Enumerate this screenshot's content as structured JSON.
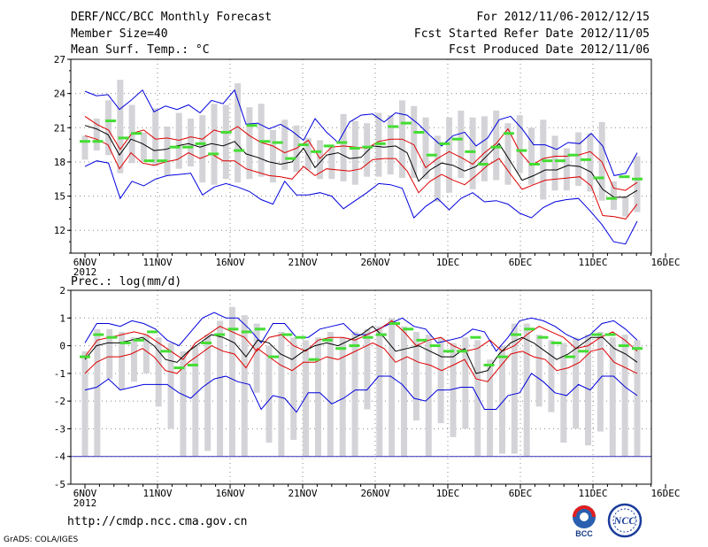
{
  "header": {
    "title": "DERF/NCC/BCC Monthly Forecast",
    "member_size": "Member Size=40",
    "variable": "Mean Surf. Temp.: °C",
    "period": "For 2012/11/06-2012/12/15",
    "refer_date": "Fcst Started Refer Date 2012/11/05",
    "produced_date": "Fcst Produced Date 2012/11/06"
  },
  "footer": {
    "url": "http://cmdp.ncc.cma.gov.cn",
    "credit": "GrADS: COLA/IGES",
    "logo_left_text": "BCC",
    "logo_right_text": "NCC"
  },
  "colors": {
    "envelope": "#0000dd",
    "ensemble_spread": "#dd0000",
    "mean": "#000000",
    "members_bar": "#d4d4d8",
    "obs_marker": "#44dd33",
    "floor_line": "#3333bb"
  },
  "chart_data": [
    {
      "id": "temperature",
      "type": "line",
      "ylabel": "Mean Surf. Temp.: °C",
      "ylim": [
        10,
        27
      ],
      "yticks": [
        12,
        15,
        18,
        21,
        24,
        27
      ],
      "xtick_labels": [
        "6NOV",
        "11NOV",
        "16NOV",
        "21NOV",
        "26NOV",
        "1DEC",
        "6DEC",
        "11DEC",
        "16DEC"
      ],
      "xtick_sublabel": "2012",
      "grid": true,
      "days": 40,
      "series": [
        {
          "name": "max",
          "values": [
            24.2,
            23.8,
            23.9,
            22.6,
            23.4,
            24.3,
            22.4,
            22.9,
            22.6,
            23.0,
            22.3,
            23.4,
            23.1,
            24.3,
            21.3,
            21.4,
            20.9,
            21.3,
            20.7,
            19.9,
            21.8,
            20.6,
            19.7,
            21.5,
            22.1,
            22.2,
            21.5,
            22.3,
            22.1,
            21.3,
            20.3,
            19.4,
            20.3,
            20.6,
            19.4,
            20.1,
            21.7,
            22.0,
            20.9,
            19.5,
            19.5,
            19.1,
            19.7,
            19.6,
            20.5,
            19.4,
            16.8,
            17.0,
            18.8
          ]
        },
        {
          "name": "upper",
          "values": [
            22.0,
            21.3,
            20.8,
            19.1,
            20.5,
            20.8,
            20.0,
            20.1,
            19.9,
            20.2,
            20.0,
            20.8,
            20.5,
            21.1,
            20.3,
            19.7,
            19.4,
            18.8,
            19.2,
            19.9,
            18.3,
            19.3,
            19.4,
            19.3,
            19.2,
            19.8,
            20.0,
            20.0,
            19.5,
            17.5,
            18.3,
            18.9,
            18.4,
            17.8,
            18.8,
            19.6,
            20.9,
            18.9,
            17.7,
            18.3,
            18.5,
            18.5,
            18.6,
            18.9,
            18.0,
            15.7,
            15.5,
            16.2
          ]
        },
        {
          "name": "mean",
          "values": [
            21.2,
            20.9,
            20.4,
            18.6,
            20.0,
            19.6,
            19.0,
            19.1,
            19.4,
            19.6,
            19.3,
            19.6,
            19.4,
            19.8,
            18.7,
            18.4,
            18.0,
            17.8,
            18.0,
            19.2,
            17.5,
            18.6,
            18.8,
            18.3,
            18.4,
            19.4,
            19.3,
            19.4,
            18.8,
            16.3,
            17.3,
            17.9,
            17.7,
            17.2,
            17.6,
            18.6,
            19.6,
            18.0,
            16.4,
            16.8,
            17.3,
            17.3,
            17.7,
            17.6,
            17.1,
            15.6,
            14.9,
            14.9,
            15.5
          ]
        },
        {
          "name": "lower",
          "values": [
            20.3,
            20.0,
            19.5,
            17.4,
            18.8,
            17.9,
            17.7,
            18.0,
            18.2,
            18.8,
            18.3,
            18.7,
            18.1,
            18.1,
            17.4,
            17.1,
            16.8,
            16.7,
            16.5,
            17.6,
            16.8,
            17.4,
            17.3,
            17.2,
            17.4,
            18.2,
            18.3,
            18.3,
            17.2,
            15.3,
            16.3,
            16.9,
            16.4,
            16.0,
            16.8,
            17.7,
            18.3,
            16.9,
            15.6,
            16.0,
            16.4,
            16.5,
            16.6,
            16.7,
            15.9,
            13.3,
            13.2,
            13.0,
            14.3
          ]
        },
        {
          "name": "min",
          "values": [
            17.6,
            18.1,
            17.9,
            14.8,
            16.3,
            15.9,
            16.5,
            16.8,
            16.9,
            17.0,
            15.1,
            15.8,
            16.1,
            15.8,
            15.4,
            14.7,
            14.3,
            16.3,
            15.1,
            15.1,
            15.3,
            15.0,
            13.9,
            14.6,
            15.3,
            16.1,
            16.0,
            15.7,
            13.1,
            14.1,
            14.8,
            13.8,
            14.8,
            15.3,
            14.5,
            14.6,
            14.3,
            13.5,
            13.1,
            14.0,
            14.5,
            14.7,
            14.8,
            13.7,
            12.5,
            11.0,
            10.8,
            12.8
          ]
        }
      ],
      "member_bars": [
        {
          "min": 18.2,
          "max": 20.3
        },
        {
          "min": 19.0,
          "max": 21.8
        },
        {
          "min": 18.6,
          "max": 23.4
        },
        {
          "min": 17.0,
          "max": 25.2
        },
        {
          "min": 17.9,
          "max": 23.0
        },
        {
          "min": 18.0,
          "max": 20.6
        },
        {
          "min": 17.7,
          "max": 22.7
        },
        {
          "min": 16.8,
          "max": 21.1
        },
        {
          "min": 17.4,
          "max": 22.3
        },
        {
          "min": 17.6,
          "max": 21.8
        },
        {
          "min": 16.2,
          "max": 22.1
        },
        {
          "min": 16.0,
          "max": 23.1
        },
        {
          "min": 16.5,
          "max": 23.0
        },
        {
          "min": 16.2,
          "max": 24.9
        },
        {
          "min": 16.5,
          "max": 22.8
        },
        {
          "min": 16.7,
          "max": 23.1
        },
        {
          "min": 16.2,
          "max": 20.8
        },
        {
          "min": 17.3,
          "max": 21.7
        },
        {
          "min": 17.1,
          "max": 21.2
        },
        {
          "min": 17.3,
          "max": 20.1
        },
        {
          "min": 16.5,
          "max": 19.9
        },
        {
          "min": 16.5,
          "max": 19.3
        },
        {
          "min": 16.3,
          "max": 22.2
        },
        {
          "min": 16.0,
          "max": 21.6
        },
        {
          "min": 16.7,
          "max": 21.4
        },
        {
          "min": 16.7,
          "max": 22.3
        },
        {
          "min": 16.9,
          "max": 22.1
        },
        {
          "min": 16.6,
          "max": 23.4
        },
        {
          "min": 16.6,
          "max": 22.9
        },
        {
          "min": 16.5,
          "max": 21.9
        },
        {
          "min": 14.5,
          "max": 20.3
        },
        {
          "min": 15.3,
          "max": 21.9
        },
        {
          "min": 16.6,
          "max": 22.5
        },
        {
          "min": 15.6,
          "max": 21.9
        },
        {
          "min": 16.3,
          "max": 22.0
        },
        {
          "min": 16.4,
          "max": 22.5
        },
        {
          "min": 16.0,
          "max": 21.4
        },
        {
          "min": 17.0,
          "max": 22.1
        },
        {
          "min": 16.0,
          "max": 21.0
        },
        {
          "min": 14.7,
          "max": 21.7
        },
        {
          "min": 15.5,
          "max": 20.3
        },
        {
          "min": 15.5,
          "max": 19.2
        },
        {
          "min": 15.9,
          "max": 20.6
        },
        {
          "min": 15.4,
          "max": 20.5
        },
        {
          "min": 14.6,
          "max": 21.5
        },
        {
          "min": 13.8,
          "max": 16.3
        },
        {
          "min": 13.2,
          "max": 15.0
        },
        {
          "min": 13.6,
          "max": 18.5
        }
      ],
      "obs_markers": [
        19.8,
        19.8,
        21.6,
        20.1,
        20.5,
        18.1,
        18.1,
        19.3,
        19.3,
        19.6,
        18.7,
        20.6,
        19.0,
        21.2,
        19.8,
        19.7,
        18.3,
        19.5,
        18.9,
        19.4,
        19.7,
        19.2,
        19.3,
        19.6,
        21.1,
        21.4,
        20.6,
        18.6,
        19.6,
        20.0,
        18.9,
        17.8,
        19.3,
        20.5,
        19.0,
        17.8,
        18.1,
        18.1,
        18.6,
        18.2,
        16.6,
        14.8,
        16.7,
        16.5
      ]
    },
    {
      "id": "precipitation",
      "type": "line",
      "ylabel": "Prec.: log(mm/d)",
      "ylim": [
        -5,
        2
      ],
      "yticks": [
        -5,
        -4,
        -3,
        -2,
        -1,
        0,
        1,
        2
      ],
      "xtick_labels": [
        "6NOV",
        "11NOV",
        "16NOV",
        "21NOV",
        "26NOV",
        "1DEC",
        "6DEC",
        "11DEC",
        "16DEC"
      ],
      "xtick_sublabel": "2012",
      "grid": true,
      "days": 40,
      "floor_value": -4,
      "series": [
        {
          "name": "max",
          "values": [
            0.1,
            0.8,
            0.8,
            0.7,
            0.9,
            0.8,
            0.6,
            0.2,
            0.0,
            0.5,
            1.0,
            1.2,
            1.0,
            1.0,
            0.6,
            0.1,
            0.8,
            0.8,
            0.3,
            0.3,
            0.6,
            0.7,
            0.8,
            0.4,
            0.4,
            0.6,
            0.8,
            1.0,
            0.7,
            0.6,
            0.1,
            0.2,
            0.3,
            0.6,
            0.5,
            -0.2,
            0.3,
            0.9,
            1.0,
            0.9,
            0.7,
            0.4,
            0.2,
            0.4,
            0.8,
            0.9,
            0.6,
            0.2
          ]
        },
        {
          "name": "upper",
          "values": [
            -0.4,
            0.2,
            0.3,
            0.4,
            0.5,
            0.4,
            0.1,
            -0.2,
            -0.5,
            0.1,
            0.4,
            0.7,
            0.5,
            0.3,
            -0.2,
            0.3,
            0.4,
            0.0,
            -0.2,
            0.2,
            0.3,
            0.3,
            0.2,
            0.4,
            0.6,
            0.9,
            0.5,
            0.0,
            0.2,
            0.3,
            0.0,
            -0.2,
            -0.1,
            0.2,
            -0.2,
            0.0,
            0.4,
            0.7,
            0.5,
            0.3,
            -0.1,
            0.0,
            0.3,
            0.5,
            0.2,
            -0.2
          ]
        },
        {
          "name": "mean",
          "values": [
            -0.5,
            0.0,
            0.1,
            0.1,
            0.2,
            0.3,
            0.0,
            -0.5,
            -0.6,
            -0.2,
            0.1,
            0.4,
            0.3,
            0.1,
            -0.4,
            0.2,
            0.1,
            -0.3,
            -0.5,
            -0.2,
            0.0,
            0.1,
            0.0,
            0.2,
            0.4,
            0.7,
            0.3,
            -0.2,
            -0.1,
            0.0,
            -0.2,
            -0.4,
            -0.4,
            -0.1,
            -1.0,
            -0.9,
            -0.3,
            0.1,
            0.3,
            0.1,
            -0.2,
            -0.5,
            -0.3,
            0.0,
            0.3,
            0.3,
            -0.1,
            -0.3,
            -0.6
          ]
        },
        {
          "name": "lower",
          "values": [
            -1.0,
            -0.6,
            -0.4,
            -0.4,
            -0.3,
            -0.1,
            -0.4,
            -0.9,
            -1.0,
            -0.6,
            -0.3,
            0.0,
            -0.2,
            -0.3,
            -0.8,
            -0.1,
            -0.4,
            -0.7,
            -0.9,
            -0.6,
            -0.6,
            -0.4,
            -0.5,
            -0.3,
            -0.1,
            0.1,
            -0.1,
            -0.6,
            -0.4,
            -0.6,
            -0.7,
            -0.9,
            -0.7,
            -0.5,
            -1.2,
            -1.3,
            -0.8,
            -0.3,
            -0.2,
            -0.4,
            -0.5,
            -0.9,
            -0.8,
            -0.6,
            -0.2,
            -0.1,
            -0.6,
            -0.8,
            -1.0
          ]
        },
        {
          "name": "min",
          "values": [
            -1.6,
            -1.5,
            -1.2,
            -1.6,
            -1.5,
            -1.4,
            -1.4,
            -1.4,
            -1.7,
            -1.9,
            -1.5,
            -1.2,
            -1.1,
            -1.3,
            -1.4,
            -2.3,
            -1.8,
            -1.9,
            -2.4,
            -1.7,
            -1.7,
            -2.1,
            -1.9,
            -1.6,
            -1.6,
            -1.1,
            -1.1,
            -1.4,
            -1.9,
            -2.0,
            -1.6,
            -1.6,
            -1.5,
            -1.5,
            -2.3,
            -2.3,
            -1.8,
            -1.7,
            -1.0,
            -1.3,
            -1.7,
            -1.8,
            -1.4,
            -1.6,
            -1.1,
            -1.1,
            -1.5,
            -1.8
          ]
        }
      ],
      "member_bars": [
        {
          "min": -4.0,
          "max": -0.2
        },
        {
          "min": -4.0,
          "max": 0.6
        },
        {
          "min": -1.2,
          "max": 0.6
        },
        {
          "min": -1.6,
          "max": 0.5
        },
        {
          "min": -1.3,
          "max": 0.3
        },
        {
          "min": -1.0,
          "max": 0.4
        },
        {
          "min": -2.2,
          "max": 0.3
        },
        {
          "min": -3.0,
          "max": 0.1
        },
        {
          "min": -4.0,
          "max": -0.2
        },
        {
          "min": -4.0,
          "max": 0.0
        },
        {
          "min": -3.8,
          "max": 0.4
        },
        {
          "min": -4.0,
          "max": 0.9
        },
        {
          "min": -4.0,
          "max": 1.4
        },
        {
          "min": -4.0,
          "max": 1.1
        },
        {
          "min": -1.7,
          "max": 0.8
        },
        {
          "min": -3.5,
          "max": 0.0
        },
        {
          "min": -4.0,
          "max": 0.5
        },
        {
          "min": -3.4,
          "max": 0.3
        },
        {
          "min": -4.0,
          "max": 0.2
        },
        {
          "min": -4.0,
          "max": 0.3
        },
        {
          "min": -4.0,
          "max": 0.5
        },
        {
          "min": -4.0,
          "max": 0.3
        },
        {
          "min": -4.0,
          "max": 0.5
        },
        {
          "min": -2.3,
          "max": 0.6
        },
        {
          "min": -4.0,
          "max": 0.7
        },
        {
          "min": -4.0,
          "max": 1.0
        },
        {
          "min": -4.0,
          "max": 0.7
        },
        {
          "min": -2.7,
          "max": 0.5
        },
        {
          "min": -4.0,
          "max": 0.4
        },
        {
          "min": -2.8,
          "max": 0.3
        },
        {
          "min": -3.3,
          "max": 0.1
        },
        {
          "min": -3.0,
          "max": 0.3
        },
        {
          "min": -4.0,
          "max": 0.2
        },
        {
          "min": -4.0,
          "max": -0.5
        },
        {
          "min": -3.9,
          "max": 0.0
        },
        {
          "min": -3.9,
          "max": 0.8
        },
        {
          "min": -4.0,
          "max": 0.8
        },
        {
          "min": -2.2,
          "max": 0.4
        },
        {
          "min": -2.4,
          "max": 0.2
        },
        {
          "min": -3.5,
          "max": 0.1
        },
        {
          "min": -3.0,
          "max": 0.3
        },
        {
          "min": -3.6,
          "max": 0.4
        },
        {
          "min": -3.1,
          "max": 0.5
        },
        {
          "min": -4.0,
          "max": 0.3
        },
        {
          "min": -4.0,
          "max": 0.4
        },
        {
          "min": -4.0,
          "max": 0.2
        }
      ],
      "obs_markers": [
        -0.4,
        0.4,
        0.3,
        0.1,
        0.2,
        0.5,
        -0.2,
        -0.8,
        -0.7,
        0.1,
        0.4,
        0.6,
        0.5,
        0.6,
        -0.4,
        0.4,
        0.3,
        -0.5,
        0.2,
        -0.1,
        0.0,
        0.3,
        0.4,
        0.8,
        0.6,
        0.2,
        0.0,
        -0.2,
        -0.2,
        0.3,
        -0.7,
        -0.4,
        0.4,
        0.6,
        0.3,
        0.1,
        -0.4,
        -0.2,
        0.4,
        0.4,
        0.0,
        -0.1
      ]
    }
  ]
}
